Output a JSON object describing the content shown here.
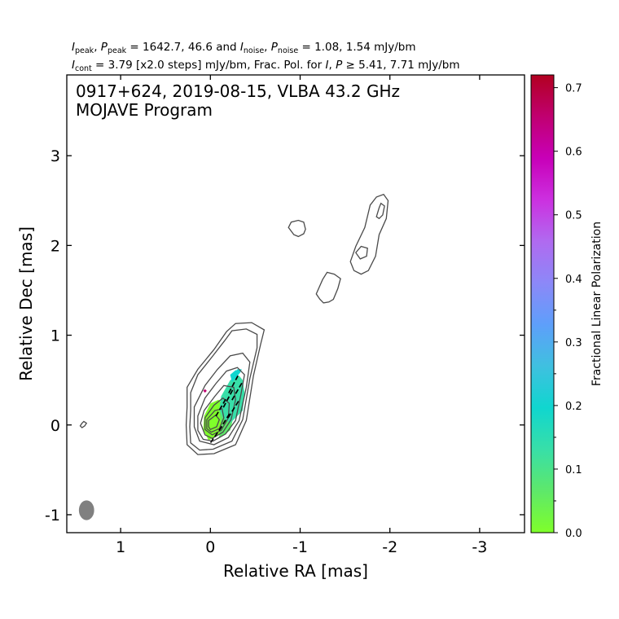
{
  "header": {
    "line1": [
      {
        "t": "I",
        "i": true
      },
      {
        "t": "peak",
        "sub": true
      },
      {
        "t": ", "
      },
      {
        "t": "P",
        "i": true
      },
      {
        "t": "peak",
        "sub": true
      },
      {
        "t": " = 1642.7, 46.6 and "
      },
      {
        "t": "I",
        "i": true
      },
      {
        "t": "noise",
        "sub": true
      },
      {
        "t": ", "
      },
      {
        "t": "P",
        "i": true
      },
      {
        "t": "noise",
        "sub": true
      },
      {
        "t": " = 1.08, 1.54 mJy/bm"
      }
    ],
    "line2": [
      {
        "t": "I",
        "i": true
      },
      {
        "t": "cont",
        "sub": true
      },
      {
        "t": " = 3.79 [x2.0 steps] mJy/bm, Frac. Pol. for "
      },
      {
        "t": "I",
        "i": true
      },
      {
        "t": ", "
      },
      {
        "t": "P",
        "i": true
      },
      {
        "t": " ≥ 5.41, 7.71 mJy/bm"
      }
    ]
  },
  "plot": {
    "title_line1": "0917+624, 2019-08-15, VLBA 43.2 GHz",
    "title_line2": "MOJAVE Program"
  },
  "chart_data": {
    "type": "contour",
    "xlabel": "Relative RA [mas]",
    "ylabel": "Relative Dec [mas]",
    "xlim": [
      1.6,
      -3.5
    ],
    "ylim": [
      -1.2,
      3.9
    ],
    "x_ticks": [
      1,
      0,
      -1,
      -2,
      -3
    ],
    "x_tick_labels": [
      "1",
      "0",
      "-1",
      "-2",
      "-3"
    ],
    "y_ticks": [
      -1,
      0,
      1,
      2,
      3
    ],
    "y_tick_labels": [
      "-1",
      "0",
      "1",
      "2",
      "3"
    ],
    "contour_base_mJy_per_beam": 3.79,
    "contour_step_factor": 2.0,
    "contours": [
      {
        "level": 1,
        "points": [
          [
            -0.04,
            -0.32
          ],
          [
            -0.28,
            -0.22
          ],
          [
            -0.4,
            0.05
          ],
          [
            -0.48,
            0.55
          ],
          [
            -0.56,
            0.9
          ],
          [
            -0.6,
            1.06
          ],
          [
            -0.46,
            1.14
          ],
          [
            -0.28,
            1.13
          ],
          [
            -0.18,
            1.04
          ],
          [
            -0.04,
            0.84
          ],
          [
            0.14,
            0.62
          ],
          [
            0.26,
            0.42
          ],
          [
            0.26,
            0.2
          ],
          [
            0.27,
            0.0
          ],
          [
            0.26,
            -0.22
          ],
          [
            0.14,
            -0.33
          ]
        ]
      },
      {
        "level": 2,
        "points": [
          [
            -0.03,
            -0.27
          ],
          [
            -0.24,
            -0.18
          ],
          [
            -0.36,
            0.06
          ],
          [
            -0.44,
            0.52
          ],
          [
            -0.52,
            0.86
          ],
          [
            -0.52,
            1.01
          ],
          [
            -0.4,
            1.07
          ],
          [
            -0.24,
            1.05
          ],
          [
            -0.16,
            0.94
          ],
          [
            -0.02,
            0.76
          ],
          [
            0.14,
            0.56
          ],
          [
            0.22,
            0.36
          ],
          [
            0.22,
            0.16
          ],
          [
            0.23,
            -0.02
          ],
          [
            0.22,
            -0.2
          ],
          [
            0.12,
            -0.28
          ]
        ]
      },
      {
        "level": 3,
        "points": [
          [
            -0.04,
            -0.22
          ],
          [
            -0.2,
            -0.14
          ],
          [
            -0.32,
            0.05
          ],
          [
            -0.4,
            0.42
          ],
          [
            -0.44,
            0.7
          ],
          [
            -0.36,
            0.8
          ],
          [
            -0.22,
            0.77
          ],
          [
            -0.08,
            0.62
          ],
          [
            0.06,
            0.44
          ],
          [
            0.18,
            0.2
          ],
          [
            0.18,
            -0.02
          ],
          [
            0.12,
            -0.18
          ]
        ]
      },
      {
        "level": 4,
        "points": [
          [
            -0.03,
            -0.18
          ],
          [
            -0.17,
            -0.1
          ],
          [
            -0.28,
            0.05
          ],
          [
            -0.34,
            0.34
          ],
          [
            -0.38,
            0.56
          ],
          [
            -0.3,
            0.64
          ],
          [
            -0.18,
            0.6
          ],
          [
            -0.06,
            0.46
          ],
          [
            0.06,
            0.3
          ],
          [
            0.14,
            0.1
          ],
          [
            0.14,
            -0.06
          ],
          [
            0.08,
            -0.16
          ]
        ]
      },
      {
        "level": 5,
        "points": [
          [
            -0.02,
            -0.15
          ],
          [
            -0.14,
            -0.08
          ],
          [
            -0.23,
            0.06
          ],
          [
            -0.28,
            0.28
          ],
          [
            -0.26,
            0.42
          ],
          [
            -0.15,
            0.44
          ],
          [
            -0.05,
            0.32
          ],
          [
            0.07,
            0.16
          ],
          [
            0.11,
            0.02
          ],
          [
            0.06,
            -0.11
          ]
        ]
      },
      {
        "level": 6,
        "points": [
          [
            -0.02,
            -0.11
          ],
          [
            -0.12,
            -0.06
          ],
          [
            -0.2,
            0.08
          ],
          [
            -0.21,
            0.24
          ],
          [
            -0.14,
            0.3
          ],
          [
            -0.04,
            0.22
          ],
          [
            0.06,
            0.08
          ],
          [
            0.06,
            -0.05
          ]
        ]
      },
      {
        "level": 7,
        "points": [
          [
            -0.01,
            -0.08
          ],
          [
            -0.1,
            -0.04
          ],
          [
            -0.15,
            0.08
          ],
          [
            -0.13,
            0.18
          ],
          [
            -0.05,
            0.16
          ],
          [
            0.04,
            0.06
          ],
          [
            0.04,
            -0.04
          ]
        ]
      },
      {
        "level": 8,
        "points": [
          [
            0.0,
            -0.05
          ],
          [
            -0.07,
            -0.02
          ],
          [
            -0.1,
            0.06
          ],
          [
            -0.06,
            0.11
          ],
          [
            0.02,
            0.05
          ],
          [
            0.02,
            -0.02
          ]
        ]
      },
      {
        "level": 1,
        "points": [
          [
            -0.93,
            2.12
          ],
          [
            -0.87,
            2.2
          ],
          [
            -0.9,
            2.26
          ],
          [
            -0.98,
            2.28
          ],
          [
            -1.04,
            2.26
          ],
          [
            -1.06,
            2.18
          ],
          [
            -1.04,
            2.13
          ],
          [
            -0.98,
            2.1
          ]
        ]
      },
      {
        "level": 1,
        "points": [
          [
            -1.18,
            1.46
          ],
          [
            -1.25,
            1.62
          ],
          [
            -1.3,
            1.7
          ],
          [
            -1.38,
            1.68
          ],
          [
            -1.45,
            1.63
          ],
          [
            -1.42,
            1.52
          ],
          [
            -1.37,
            1.4
          ],
          [
            -1.32,
            1.37
          ],
          [
            -1.26,
            1.36
          ],
          [
            -1.22,
            1.4
          ]
        ]
      },
      {
        "level": 1,
        "points": [
          [
            -1.56,
            1.82
          ],
          [
            -1.62,
            1.99
          ],
          [
            -1.72,
            2.2
          ],
          [
            -1.78,
            2.45
          ],
          [
            -1.85,
            2.54
          ],
          [
            -1.93,
            2.57
          ],
          [
            -1.98,
            2.5
          ],
          [
            -1.96,
            2.3
          ],
          [
            -1.88,
            2.12
          ],
          [
            -1.84,
            1.88
          ],
          [
            -1.76,
            1.72
          ],
          [
            -1.68,
            1.68
          ],
          [
            -1.6,
            1.72
          ]
        ]
      },
      {
        "level": 2,
        "points": [
          [
            -1.62,
            1.92
          ],
          [
            -1.68,
            1.99
          ],
          [
            -1.75,
            1.97
          ],
          [
            -1.74,
            1.88
          ],
          [
            -1.67,
            1.85
          ]
        ]
      },
      {
        "level": 2,
        "points": [
          [
            -1.85,
            2.32
          ],
          [
            -1.88,
            2.42
          ],
          [
            -1.9,
            2.47
          ],
          [
            -1.94,
            2.44
          ],
          [
            -1.92,
            2.34
          ],
          [
            -1.88,
            2.3
          ]
        ]
      },
      {
        "level": 1,
        "points": [
          [
            1.45,
            -0.01
          ],
          [
            1.43,
            0.02
          ],
          [
            1.41,
            0.04
          ],
          [
            1.38,
            0.02
          ],
          [
            1.4,
            -0.01
          ],
          [
            1.43,
            -0.03
          ]
        ]
      }
    ],
    "fractional_polarization_regions": [
      {
        "value": 0.01,
        "points": [
          [
            0.02,
            -0.17
          ],
          [
            -0.12,
            -0.1
          ],
          [
            -0.2,
            0.05
          ],
          [
            -0.18,
            0.2
          ],
          [
            -0.09,
            0.28
          ],
          [
            0.0,
            0.24
          ],
          [
            0.07,
            0.1
          ],
          [
            0.08,
            -0.05
          ]
        ]
      },
      {
        "value": 0.05,
        "points": [
          [
            -0.08,
            -0.16
          ],
          [
            -0.22,
            -0.06
          ],
          [
            -0.26,
            0.1
          ],
          [
            -0.26,
            0.2
          ],
          [
            -0.16,
            0.24
          ],
          [
            -0.1,
            0.16
          ],
          [
            -0.12,
            0.0
          ],
          [
            -0.1,
            -0.12
          ]
        ]
      },
      {
        "value": 0.12,
        "points": [
          [
            -0.22,
            0.02
          ],
          [
            -0.36,
            0.16
          ],
          [
            -0.38,
            0.36
          ],
          [
            -0.36,
            0.5
          ],
          [
            -0.32,
            0.55
          ],
          [
            -0.22,
            0.5
          ],
          [
            -0.12,
            0.32
          ],
          [
            -0.1,
            0.18
          ],
          [
            -0.14,
            0.08
          ]
        ]
      },
      {
        "value": 0.17,
        "points": [
          [
            -0.24,
            0.48
          ],
          [
            -0.3,
            0.54
          ],
          [
            -0.34,
            0.6
          ],
          [
            -0.28,
            0.61
          ],
          [
            -0.22,
            0.56
          ]
        ]
      },
      {
        "value": 0.22,
        "points": [
          [
            -0.28,
            0.54
          ],
          [
            -0.33,
            0.58
          ],
          [
            -0.35,
            0.62
          ],
          [
            -0.3,
            0.62
          ],
          [
            -0.27,
            0.58
          ]
        ]
      },
      {
        "value": 0.68,
        "points": [
          [
            0.06,
            0.36
          ],
          [
            0.04,
            0.38
          ],
          [
            0.06,
            0.4
          ],
          [
            0.08,
            0.38
          ]
        ]
      }
    ],
    "evpa_vectors": [
      {
        "x": -0.07,
        "y": -0.1,
        "angle_deg": 55
      },
      {
        "x": -0.16,
        "y": 0.04,
        "angle_deg": 58
      },
      {
        "x": -0.12,
        "y": 0.2,
        "angle_deg": 60
      },
      {
        "x": -0.26,
        "y": 0.18,
        "angle_deg": 58
      },
      {
        "x": -0.2,
        "y": 0.3,
        "angle_deg": 62
      },
      {
        "x": -0.3,
        "y": 0.38,
        "angle_deg": 60
      },
      {
        "x": -0.26,
        "y": 0.46,
        "angle_deg": 62
      }
    ],
    "beam": {
      "x": 1.38,
      "y": -0.95,
      "major_mas": 0.22,
      "minor_mas": 0.17,
      "pa_deg": 0
    },
    "colorbar": {
      "label": "Fractional Linear Polarization",
      "min": 0.0,
      "max": 0.72,
      "tick_values": [
        0.0,
        0.1,
        0.2,
        0.3,
        0.4,
        0.5,
        0.6,
        0.7
      ],
      "tick_labels": [
        "0.0",
        "0.1",
        "0.2",
        "0.3",
        "0.4",
        "0.5",
        "0.6",
        "0.7"
      ],
      "minor_tick_values": [
        0.05,
        0.15,
        0.25,
        0.35
      ],
      "colors": [
        "#7fff2a",
        "#5ee86a",
        "#38dfa8",
        "#10d6cf",
        "#3fc0e0",
        "#5e9ffa",
        "#8c88f8",
        "#b06af0",
        "#cc30e0",
        "#c800b8",
        "#c00070",
        "#b20020"
      ]
    }
  }
}
